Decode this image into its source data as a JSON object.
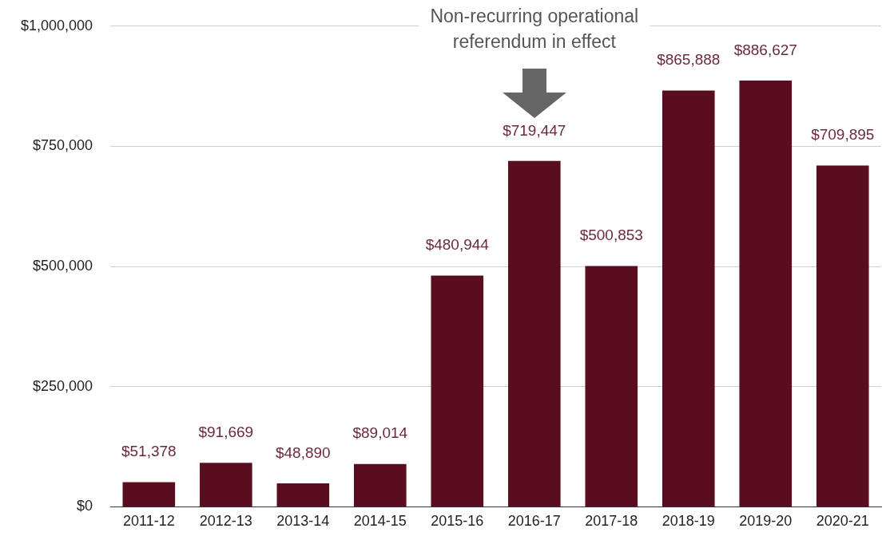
{
  "chart_data": {
    "type": "bar",
    "categories": [
      "2011-12",
      "2012-13",
      "2013-14",
      "2014-15",
      "2015-16",
      "2016-17",
      "2017-18",
      "2018-19",
      "2019-20",
      "2020-21"
    ],
    "values": [
      51378,
      91669,
      48890,
      89014,
      480944,
      719447,
      500853,
      865888,
      886627,
      709895
    ],
    "color": "#5a0d1e",
    "value_labels": [
      "$51,378",
      "$91,669",
      "$48,890",
      "$89,014",
      "$480,944",
      "$719,447",
      "$500,853",
      "$865,888",
      "$886,627",
      "$709,895"
    ],
    "ylim": [
      0,
      1000000
    ],
    "yticks": [
      {
        "value": 0,
        "label": "$0"
      },
      {
        "value": 250000,
        "label": "$250,000"
      },
      {
        "value": 500000,
        "label": "$500,000"
      },
      {
        "value": 750000,
        "label": "$750,000"
      },
      {
        "value": 1000000,
        "label": "$1,000,000"
      }
    ],
    "grid": "y",
    "legend": false,
    "annotations": [
      "Non-recurring operational referendum in effect"
    ]
  }
}
